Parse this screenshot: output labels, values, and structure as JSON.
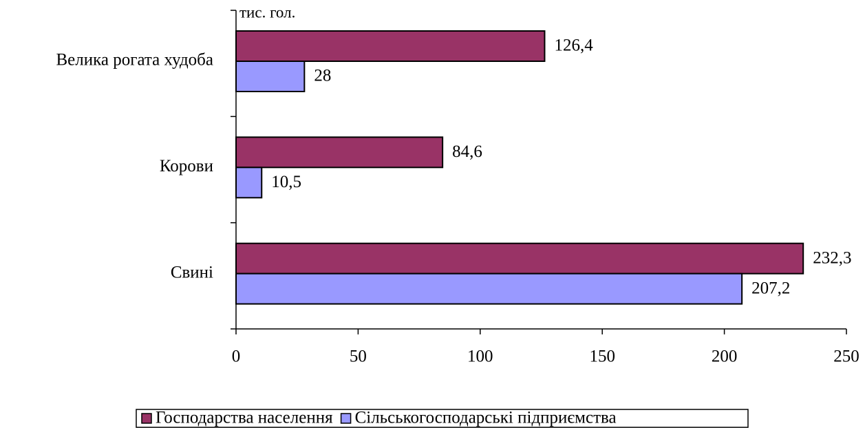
{
  "chart_data": {
    "type": "hbar",
    "axis_label": "тис. гол.",
    "categories": [
      "Велика рогата худоба",
      "Корови",
      "Свині"
    ],
    "series": [
      {
        "name": "Господарства населення",
        "color": "#993366",
        "values": [
          126.4,
          84.6,
          232.3
        ],
        "value_labels": [
          "126,4",
          "84,6",
          "232,3"
        ]
      },
      {
        "name": "Сільськогосподарські підприємства",
        "color": "#9999ff",
        "values": [
          28,
          10.5,
          207.2
        ],
        "value_labels": [
          "28",
          "10,5",
          "207,2"
        ]
      }
    ],
    "xlim": [
      0,
      250
    ],
    "xticks": [
      0,
      50,
      100,
      150,
      200,
      250
    ],
    "legend": "bottom"
  }
}
